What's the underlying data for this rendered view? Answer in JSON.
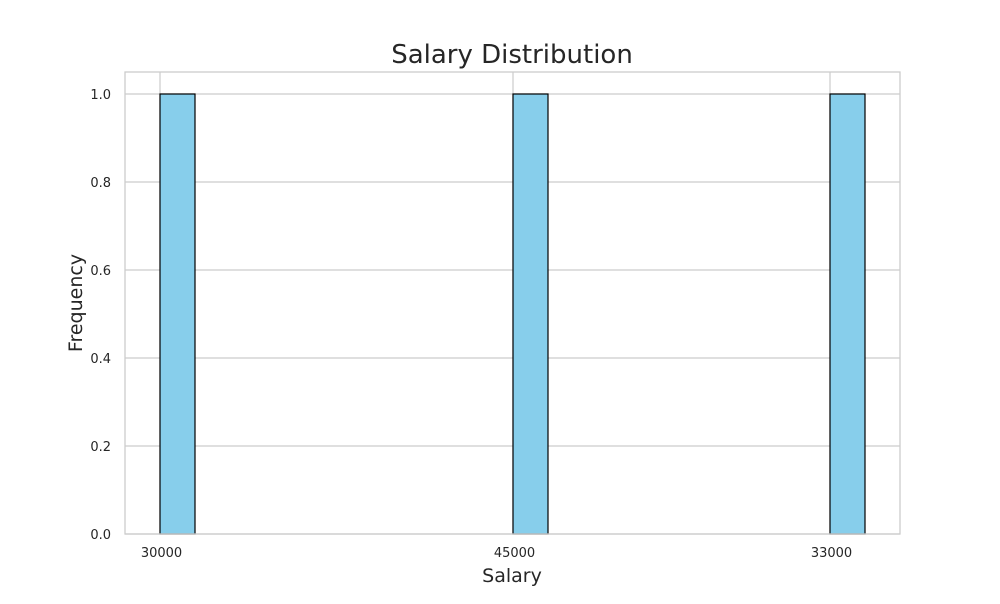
{
  "chart_data": {
    "type": "bar",
    "title": "Salary Distribution",
    "xlabel": "Salary",
    "ylabel": "Frequency",
    "categories": [
      "30000",
      "45000",
      "33000"
    ],
    "values": [
      1,
      1,
      1
    ],
    "ylim": [
      0,
      1.05
    ],
    "yticks": [
      "0.0",
      "0.2",
      "0.4",
      "0.6",
      "0.8",
      "1.0"
    ],
    "grid": true,
    "bar_color": "#87ceeb",
    "bar_edge_color": "#000000"
  }
}
